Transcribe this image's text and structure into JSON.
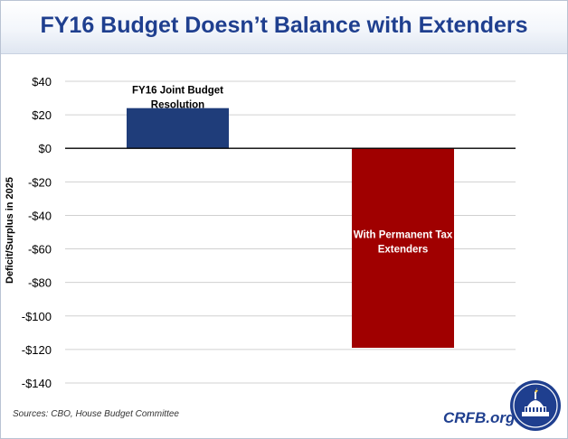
{
  "chart_data": {
    "type": "bar",
    "title": "FY16 Budget Doesn’t Balance with Extenders",
    "ylabel": "Deficit/Surplus in 2025",
    "xlabel": "",
    "ylim": [
      -140,
      40
    ],
    "yticks": [
      40,
      20,
      0,
      -20,
      -40,
      -60,
      -80,
      -100,
      -120,
      -140
    ],
    "ytick_labels": [
      "$40",
      "$20",
      "$0",
      "-$20",
      "-$40",
      "-$60",
      "-$80",
      "-$100",
      "-$120",
      "-$140"
    ],
    "grid": true,
    "categories": [
      "FY16 Joint Budget Resolution",
      "With Permanent Tax Extenders"
    ],
    "label_lines": [
      [
        "FY16 Joint Budget",
        "Resolution"
      ],
      [
        "With Permanent Tax",
        "Extenders"
      ]
    ],
    "values": [
      24,
      -119
    ],
    "colors": [
      "#1f3d7a",
      "#a00000"
    ],
    "label_colors": [
      "#000000",
      "#ffffff"
    ]
  },
  "footer": {
    "source": "Sources: CBO, House Budget Committee",
    "brand": "CRFB.org"
  },
  "colors": {
    "title": "#1f3f8f",
    "grid": "#d0d0d0",
    "axis": "#000000"
  }
}
